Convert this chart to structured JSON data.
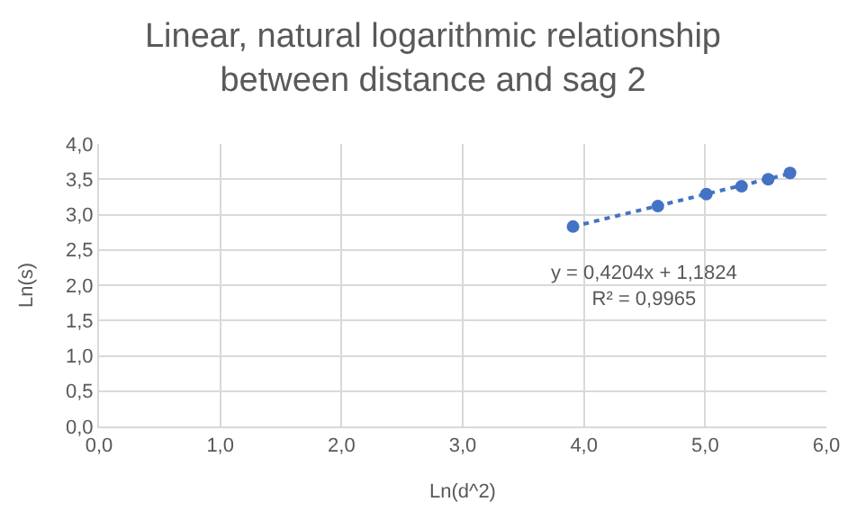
{
  "chart_data": {
    "type": "scatter",
    "title": "Linear, natural logarithmic relationship between distance and sag 2",
    "xlabel": "Ln(d^2)",
    "ylabel": "Ln(s)",
    "series": [
      {
        "color": "#4472c4",
        "marker": "circle",
        "x": [
          3.91,
          4.61,
          5.01,
          5.3,
          5.52,
          5.7
        ],
        "values": [
          2.83,
          3.12,
          3.29,
          3.4,
          3.5,
          3.59
        ]
      },
      {
        "type": "line",
        "color": "#4472c4",
        "line_style": "dotted",
        "marker": "none",
        "x": [
          3.91,
          5.7
        ],
        "values": [
          2.83,
          3.58
        ]
      }
    ],
    "annotations": [
      "y = 0,4204x + 1,1824\nR² = 0,9965"
    ],
    "xlim": [
      0,
      6
    ],
    "ylim": [
      0,
      4
    ],
    "xticks": [
      {
        "value": 0,
        "label": "0,0"
      },
      {
        "value": 1,
        "label": "1,0"
      },
      {
        "value": 2,
        "label": "2,0"
      },
      {
        "value": 3,
        "label": "3,0"
      },
      {
        "value": 4,
        "label": "4,0"
      },
      {
        "value": 5,
        "label": "5,0"
      },
      {
        "value": 6,
        "label": "6,0"
      }
    ],
    "yticks": [
      {
        "value": 0,
        "label": "0,0"
      },
      {
        "value": 0.5,
        "label": "0,5"
      },
      {
        "value": 1,
        "label": "1,0"
      },
      {
        "value": 1.5,
        "label": "1,5"
      },
      {
        "value": 2,
        "label": "2,0"
      },
      {
        "value": 2.5,
        "label": "2,5"
      },
      {
        "value": 3,
        "label": "3,0"
      },
      {
        "value": 3.5,
        "label": "3,5"
      },
      {
        "value": 4,
        "label": "4,0"
      }
    ],
    "grid": true,
    "legend": false
  }
}
